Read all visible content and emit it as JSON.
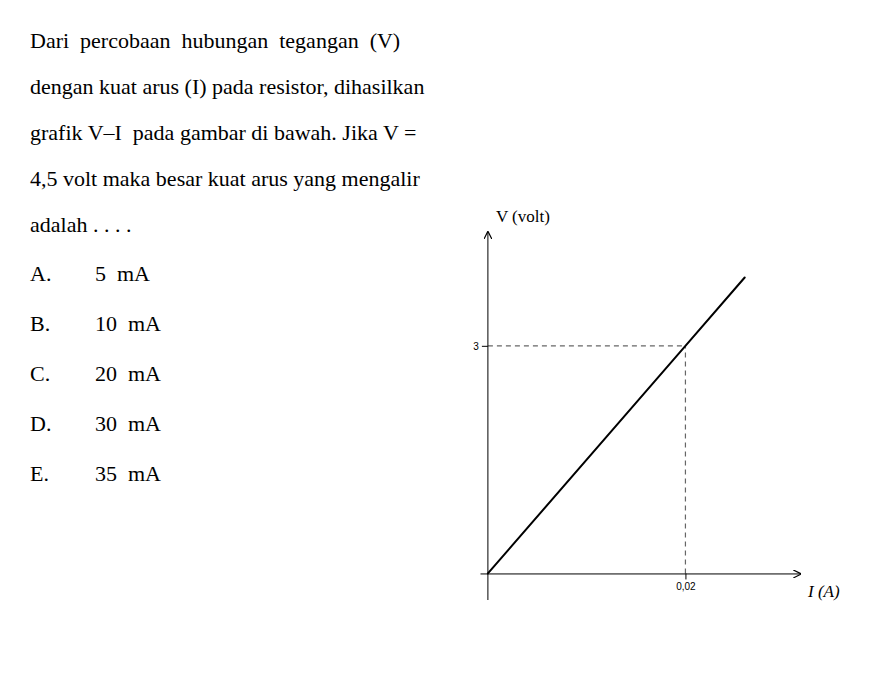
{
  "chart_data": {
    "type": "line",
    "annotations": [
      [
        "Dari  percobaan  hubungan  tegangan  (V)"
      ],
      [
        "dengan kuat arus (I) pada resistor, dihasilkan"
      ],
      [
        "grafik V–I  pada gambar di bawah. Jika V ="
      ],
      [
        "4,5 volt maka besar kuat arus yang mengalir"
      ],
      [
        "adalah . . . ."
      ],
      [
        "A.",
        "5  mA"
      ],
      [
        "B.",
        "10  mA"
      ],
      [
        "C.",
        "20  mA"
      ],
      [
        "D.",
        "30  mA"
      ],
      [
        "E.",
        "35  mA"
      ]
    ],
    "x_label": "I (A)",
    "y_label": "V (volt)",
    "x": [
      0,
      0.02,
      0.026
    ],
    "values": [
      0,
      3,
      3.9
    ],
    "color": "#000000",
    "xlim": [
      -0.0008,
      0.0316
    ],
    "ylim": [
      -0.35,
      4.5
    ],
    "xticks": [
      {
        "value": 0.02,
        "label": "0,02"
      }
    ],
    "yticks": [
      3
    ],
    "grid": false
  }
}
